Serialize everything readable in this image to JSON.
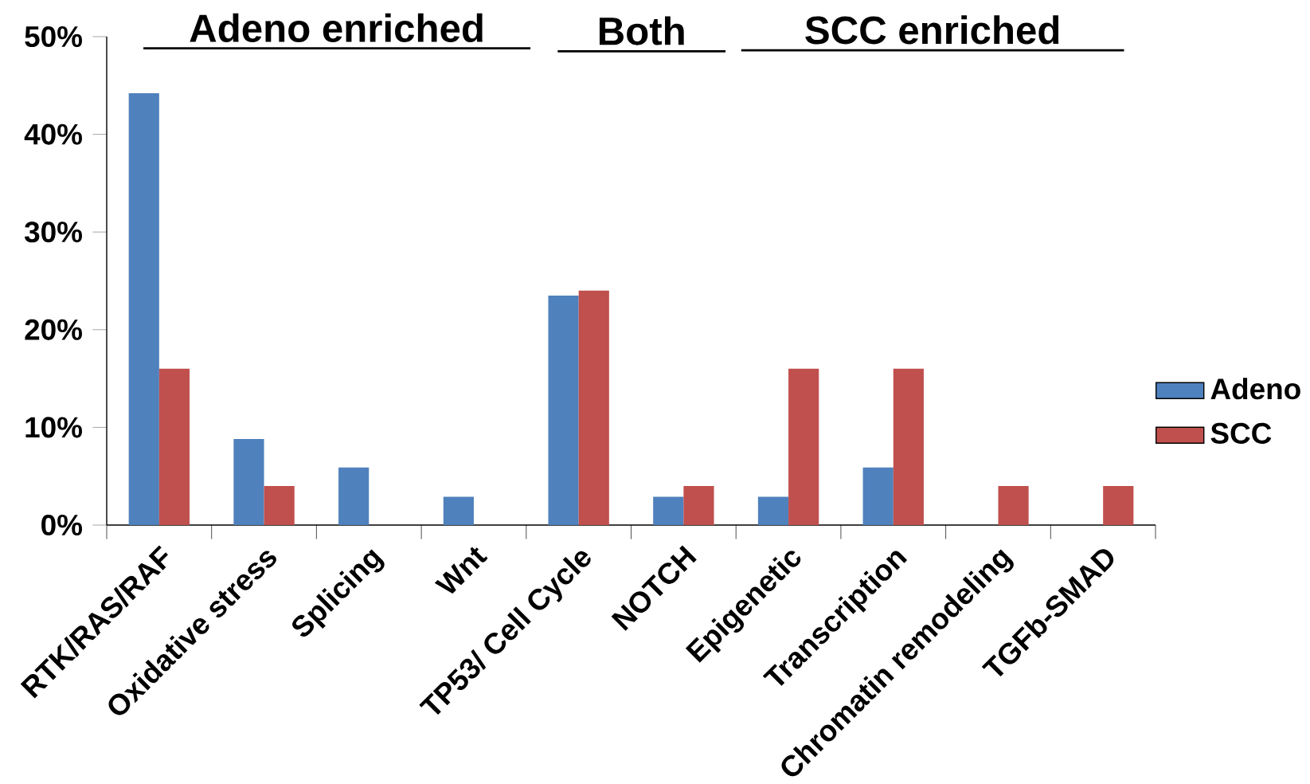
{
  "chart_data": {
    "type": "bar",
    "categories": [
      "RTK/RAS/RAF",
      "Oxidative stress",
      "Splicing",
      "Wnt",
      "TP53/ Cell Cycle",
      "NOTCH",
      "Epigenetic",
      "Transcription",
      "Chromatin remodeling",
      "TGFb-SMAD"
    ],
    "series": [
      {
        "name": "Adeno",
        "color": "#4f81bd",
        "values": [
          44.2,
          8.8,
          5.9,
          2.9,
          23.5,
          2.9,
          2.9,
          5.9,
          0,
          0
        ]
      },
      {
        "name": "SCC",
        "color": "#c0504d",
        "values": [
          16,
          4,
          0,
          0,
          24,
          4,
          16,
          16,
          4,
          4
        ]
      }
    ],
    "ylim": [
      0,
      50
    ],
    "yticks": [
      {
        "value": 0,
        "label": "0%"
      },
      {
        "value": 10,
        "label": "10%"
      },
      {
        "value": 20,
        "label": "20%"
      },
      {
        "value": 30,
        "label": "30%"
      },
      {
        "value": 40,
        "label": "40%"
      },
      {
        "value": 50,
        "label": "50%"
      }
    ],
    "grid": false,
    "legend": "right",
    "annotations": [
      "Adeno enriched",
      "Both",
      "SCC enriched"
    ]
  }
}
